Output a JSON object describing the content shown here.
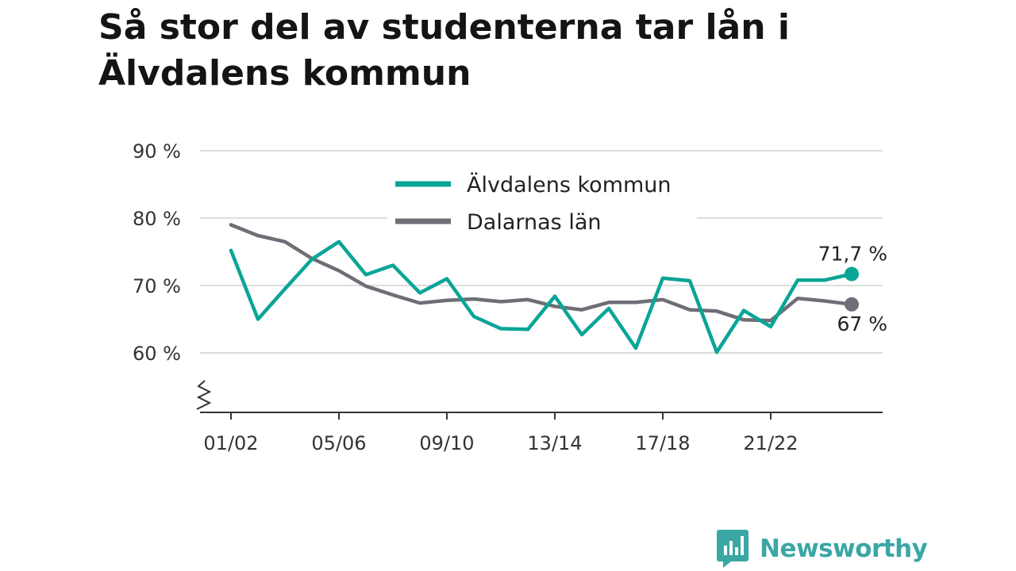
{
  "title": "Så stor del av studenterna tar lån i Älvdalens kommun",
  "brand": {
    "name": "Newsworthy",
    "color": "#3aa7a5"
  },
  "chart_data": {
    "type": "line",
    "title": "Så stor del av studenterna tar lån i Älvdalens kommun",
    "xlabel": "",
    "ylabel": "",
    "x": [
      "01/02",
      "02/03",
      "03/04",
      "04/05",
      "05/06",
      "06/07",
      "07/08",
      "08/09",
      "09/10",
      "10/11",
      "11/12",
      "12/13",
      "13/14",
      "14/15",
      "15/16",
      "16/17",
      "17/18",
      "18/19",
      "19/20",
      "20/21",
      "21/22",
      "22/23",
      "23/24",
      "24/25"
    ],
    "x_tick_labels": [
      "01/02",
      "05/06",
      "09/10",
      "13/14",
      "17/18",
      "21/22"
    ],
    "y_tick_values": [
      60,
      70,
      80,
      90
    ],
    "y_tick_labels": [
      "60 %",
      "70 %",
      "80 %",
      "90 %"
    ],
    "ylim": [
      52,
      90
    ],
    "y_axis_broken": true,
    "grid": true,
    "legend_position": "top-center",
    "series": [
      {
        "name": "Älvdalens kommun",
        "color": "#0aa597",
        "values": [
          75.2,
          65.0,
          69.5,
          73.9,
          76.5,
          71.6,
          73.0,
          68.9,
          71.0,
          65.4,
          63.6,
          63.5,
          68.4,
          62.7,
          66.6,
          60.7,
          71.1,
          70.7,
          60.1,
          66.3,
          63.9,
          70.8,
          70.8,
          71.7
        ],
        "end_label": "71,7 %"
      },
      {
        "name": "Dalarnas län",
        "color": "#6e6e76",
        "values": [
          79.0,
          77.4,
          76.5,
          74.0,
          72.2,
          69.9,
          68.6,
          67.4,
          67.8,
          68.0,
          67.6,
          67.9,
          66.9,
          66.4,
          67.5,
          67.5,
          67.9,
          66.4,
          66.2,
          64.9,
          64.8,
          68.1,
          67.7,
          67.2
        ],
        "end_label": "67 %"
      }
    ]
  }
}
